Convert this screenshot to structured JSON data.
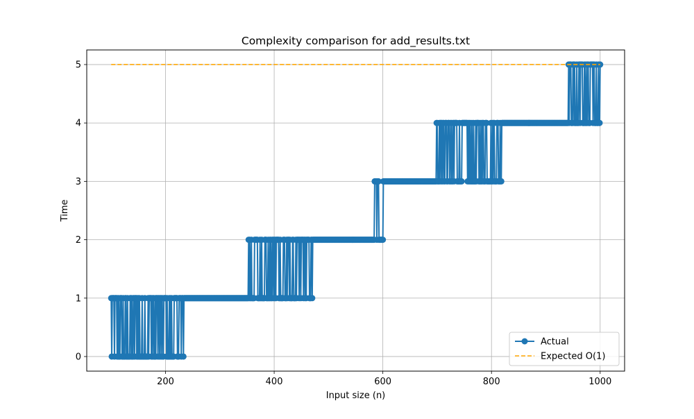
{
  "chart_data": {
    "type": "line",
    "title": "Complexity comparison for add_results.txt",
    "xlabel": "Input size (n)",
    "ylabel": "Time",
    "xlim": [
      55,
      1045
    ],
    "ylim": [
      -0.25,
      5.25
    ],
    "xticks": [
      200,
      400,
      600,
      800,
      1000
    ],
    "yticks": [
      0,
      1,
      2,
      3,
      4,
      5
    ],
    "grid": true,
    "legend_position": "lower-right",
    "series": [
      {
        "name": "Actual",
        "color": "#1f77b4",
        "style": "solid-with-circle-markers",
        "x_start": 100,
        "x_end": 1000,
        "x_step": 1,
        "segments": [
          {
            "from": 100,
            "to": 233,
            "low": 0,
            "high": 1,
            "note": "oscillating"
          },
          {
            "from": 234,
            "to": 352,
            "value": 1
          },
          {
            "from": 353,
            "to": 470,
            "low": 1,
            "high": 2,
            "note": "oscillating"
          },
          {
            "from": 471,
            "to": 583,
            "value": 2
          },
          {
            "from": 584,
            "to": 600,
            "low": 2,
            "high": 3,
            "note": "oscillating"
          },
          {
            "from": 601,
            "to": 697,
            "value": 3
          },
          {
            "from": 698,
            "to": 818,
            "low": 3,
            "high": 4,
            "note": "oscillating"
          },
          {
            "from": 819,
            "to": 935,
            "value": 4
          },
          {
            "from": 936,
            "to": 1000,
            "low": 4,
            "high": 5,
            "note": "oscillating"
          }
        ]
      },
      {
        "name": "Expected O(1)",
        "color": "#ffa500",
        "style": "dashed",
        "x": [
          100,
          1000
        ],
        "values": [
          5,
          5
        ]
      }
    ]
  }
}
